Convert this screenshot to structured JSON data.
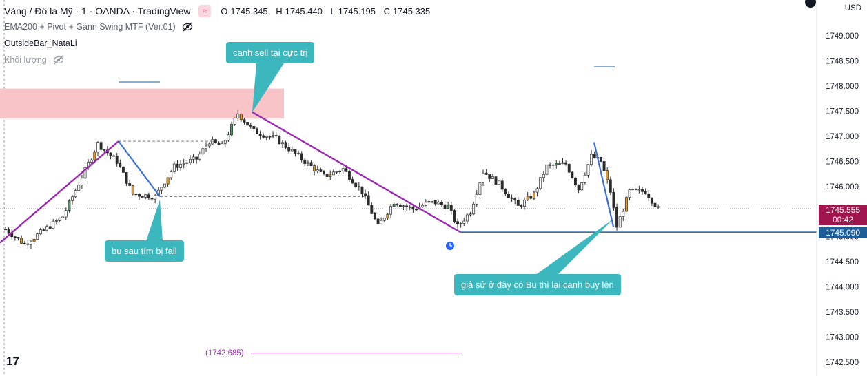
{
  "header": {
    "symbol": "Vàng / Đô la Mỹ · 1 · OANDA · TradingView",
    "open_label": "O",
    "open": "1745.345",
    "high_label": "H",
    "high": "1745.440",
    "low_label": "L",
    "low": "1745.195",
    "close_label": "C",
    "close": "1745.335",
    "currency": "USD"
  },
  "indicators": [
    "EMA200 + Pivot + Gann Swing MTF (Ver.01)",
    "OutsideBar_NataLi",
    "Khối lượng"
  ],
  "annotations": {
    "sell": "canh sell tại cực trị",
    "fail": "bu sau tím bị fail",
    "buy": "giả sử ở đây có Bu thì lại canh buy lên"
  },
  "pivot_label": "(1742.685)",
  "last_price": "1745.555",
  "countdown": "00:42",
  "level_price": "1745.090",
  "colors": {
    "bull": "#4c9a62",
    "bear": "#2b2b2b",
    "orange": "#e0982b",
    "zone": "#f9c4c8",
    "swing": "#9c27b0",
    "leg": "#3a70d6",
    "hline": "#1f5d99",
    "callout": "#3cb7be"
  },
  "chart_data": {
    "type": "candlestick",
    "y_ticks": [
      1742.5,
      1743.0,
      1743.5,
      1744.0,
      1744.5,
      1745.0,
      1745.5,
      1746.0,
      1746.5,
      1747.0,
      1747.5,
      1748.0,
      1748.5,
      1749.0
    ],
    "y_tick_labels": [
      "1742.500",
      "1743.000",
      "1743.500",
      "1744.000",
      "1744.500",
      "1745.000",
      "1745.500",
      "1746.000",
      "1746.500",
      "1747.000",
      "1747.500",
      "1748.000",
      "1748.500",
      "1749.000"
    ],
    "ylim": [
      1742.4,
      1749.5
    ],
    "resistance_zone": [
      1747.35,
      1747.95
    ],
    "swing_high": 1747.48,
    "pivot_level": 1742.685,
    "support_level": 1745.09
  }
}
